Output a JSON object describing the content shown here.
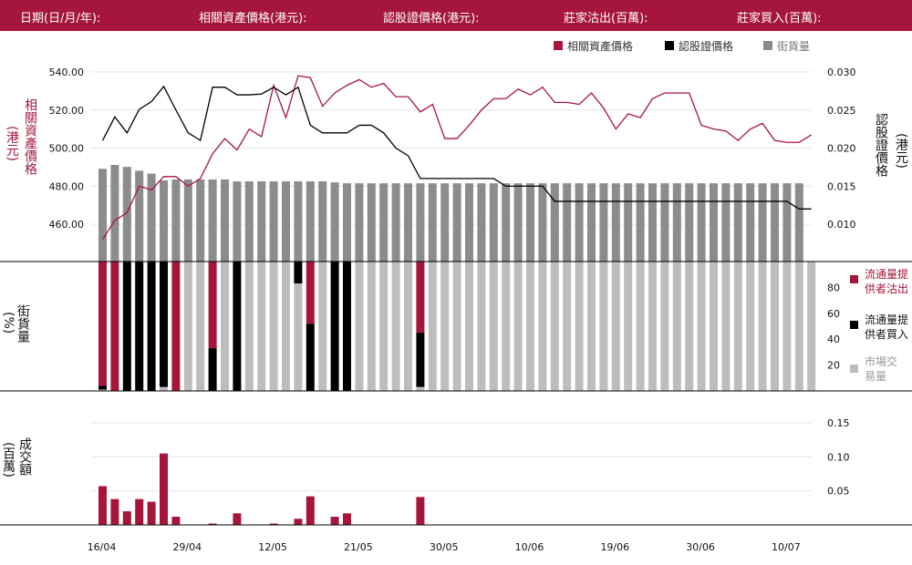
{
  "header": {
    "date": "日期(日/月/年):",
    "underlying_price": "相關資產價格(港元):",
    "warrant_price": "認股證價格(港元):",
    "mm_sell": "莊家沽出(百萬):",
    "mm_buy": "莊家買入(百萬):"
  },
  "colors": {
    "brand": "#a5163a",
    "underlying": "#a5163a",
    "warrant": "#000000",
    "outstanding": "#8c8c8c",
    "market": "#bdbdbd",
    "grid": "#e6e6e6"
  },
  "legend_top": {
    "underlying": "相關資產價格",
    "warrant": "認股證價格",
    "outstanding": "街貨量"
  },
  "legend_mid": {
    "sell": "流通量提供者沽出",
    "buy": "流通量提供者買入",
    "market": "市場交易量"
  },
  "axis_labels": {
    "left_price": "相關資產價格",
    "left_price_unit": "(港元)",
    "right_price": "認股證價格",
    "right_price_unit": "(港元)",
    "outstanding": "街貨量",
    "outstanding_unit": "(%)",
    "turnover": "成交額",
    "turnover_unit": "(百萬)"
  },
  "chart_data": {
    "type": "line",
    "x_ticks": [
      "16/04",
      "29/04",
      "12/05",
      "21/05",
      "30/05",
      "10/06",
      "19/06",
      "30/06",
      "10/07"
    ],
    "x_tick_index": [
      0,
      7,
      14,
      21,
      28,
      35,
      42,
      49,
      56
    ],
    "left_ticks": [
      "540.00",
      "520.00",
      "500.00",
      "480.00",
      "460.00"
    ],
    "right_ticks": [
      "0.030",
      "0.025",
      "0.020",
      "0.015",
      "0.010"
    ],
    "left_ylim": [
      440,
      543
    ],
    "right_ylim": [
      0.0061,
      0.0312
    ],
    "underlying_price": [
      452,
      462,
      466,
      480,
      478,
      485,
      485,
      480,
      484,
      497,
      505,
      499,
      510,
      506,
      533,
      516,
      538,
      537,
      522,
      529,
      533,
      536,
      532,
      534,
      527,
      527,
      519,
      523,
      505,
      505,
      512,
      520,
      526,
      526,
      531,
      528,
      532,
      524,
      524,
      523,
      529,
      521,
      510,
      518,
      516,
      526,
      529,
      529,
      529,
      512,
      510,
      509,
      504,
      510,
      513,
      504,
      503,
      503,
      507
    ],
    "warrant_price": [
      0.021,
      0.0241,
      0.022,
      0.0251,
      0.0261,
      0.0281,
      0.025,
      0.022,
      0.021,
      0.028,
      0.028,
      0.027,
      0.027,
      0.0271,
      0.028,
      0.027,
      0.028,
      0.023,
      0.022,
      0.022,
      0.022,
      0.023,
      0.023,
      0.022,
      0.02,
      0.019,
      0.016,
      0.016,
      0.016,
      0.016,
      0.016,
      0.016,
      0.016,
      0.015,
      0.015,
      0.015,
      0.015,
      0.013,
      0.013,
      0.013,
      0.013,
      0.013,
      0.013,
      0.013,
      0.013,
      0.013,
      0.013,
      0.013,
      0.013,
      0.013,
      0.013,
      0.013,
      0.013,
      0.013,
      0.013,
      0.013,
      0.013,
      0.012,
      0.012
    ],
    "outstanding_volume": [
      96,
      100,
      98,
      94,
      91,
      84,
      85,
      85,
      85,
      85,
      85,
      83,
      83,
      83,
      83,
      83,
      83,
      83,
      83,
      82,
      81,
      81,
      81,
      81,
      81,
      81,
      81,
      81,
      81,
      81,
      81,
      81,
      81,
      81,
      81,
      81,
      81,
      81,
      81,
      81,
      81,
      81,
      81,
      81,
      81,
      81,
      81,
      81,
      81,
      81,
      81,
      81,
      81,
      81,
      81,
      81,
      81,
      81,
      null
    ],
    "outstanding_scale_max": 100,
    "volume_pct_ticks": [
      "80",
      "60",
      "40",
      "20"
    ],
    "volume_pct_values": [
      80,
      60,
      40,
      20
    ],
    "volume_pct_max": 100,
    "volume_sell_pct": [
      96,
      100,
      0,
      0,
      0,
      0,
      100,
      0,
      0,
      67,
      0,
      0,
      0,
      0,
      0,
      0,
      0,
      48,
      0,
      0,
      0,
      0,
      0,
      0,
      0,
      0,
      0,
      0,
      0,
      0,
      0,
      0,
      0,
      0,
      0,
      0,
      0,
      0,
      0,
      0,
      0,
      0,
      0,
      0,
      0,
      0,
      0,
      0,
      0,
      0,
      0,
      0,
      0,
      0,
      0,
      0,
      0,
      0,
      0
    ],
    "volume_buy_pct": [
      3,
      0,
      100,
      100,
      100,
      97,
      0,
      0,
      0,
      33,
      0,
      100,
      0,
      0,
      0,
      0,
      17,
      52,
      0,
      100,
      100,
      0,
      0,
      0,
      0,
      0,
      0,
      0,
      0,
      0,
      0,
      0,
      0,
      0,
      0,
      0,
      0,
      0,
      0,
      0,
      0,
      0,
      0,
      0,
      0,
      0,
      0,
      0,
      0,
      0,
      0,
      0,
      0,
      0,
      0,
      0,
      0,
      0,
      0
    ],
    "volume_market_pct": [
      1,
      0,
      0,
      0,
      0,
      3,
      0,
      100,
      100,
      0,
      100,
      0,
      100,
      100,
      100,
      100,
      83,
      0,
      100,
      0,
      0,
      100,
      100,
      100,
      100,
      100,
      100,
      100,
      100,
      100,
      100,
      100,
      100,
      100,
      100,
      100,
      100,
      100,
      100,
      100,
      100,
      100,
      100,
      100,
      100,
      100,
      100,
      100,
      100,
      100,
      100,
      100,
      100,
      100,
      100,
      100,
      100,
      100,
      100
    ],
    "volume_sell_pct_alt": [
      0,
      0,
      0,
      0,
      0,
      0,
      0,
      0,
      0,
      0,
      0,
      0,
      0,
      0,
      0,
      0,
      0,
      0,
      0,
      0,
      0,
      0,
      0,
      0,
      0,
      0,
      55,
      0,
      0,
      0,
      0,
      0,
      0,
      0,
      0,
      0,
      0,
      0,
      0,
      0,
      0,
      0,
      0,
      0,
      0,
      0,
      0,
      0,
      0,
      0,
      0,
      0,
      0,
      0,
      0,
      0,
      0,
      0,
      0
    ],
    "turnover_ticks": [
      "0.15",
      "0.10",
      "0.05"
    ],
    "turnover_tick_values": [
      0.15,
      0.1,
      0.05
    ],
    "turnover_max": 0.155,
    "turnover": [
      0.057,
      0.038,
      0.02,
      0.038,
      0.034,
      0.105,
      0.012,
      0,
      0,
      0.002,
      0,
      0.017,
      0,
      0,
      0.002,
      0,
      0.009,
      0.042,
      0,
      0.012,
      0.017,
      0,
      0,
      0,
      0,
      0,
      0.041,
      0,
      0,
      0,
      0,
      0,
      0,
      0,
      0,
      0,
      0,
      0,
      0,
      0,
      0,
      0,
      0,
      0,
      0,
      0,
      0,
      0,
      0,
      0,
      0,
      0,
      0,
      0,
      0,
      0,
      0,
      0,
      0
    ]
  }
}
